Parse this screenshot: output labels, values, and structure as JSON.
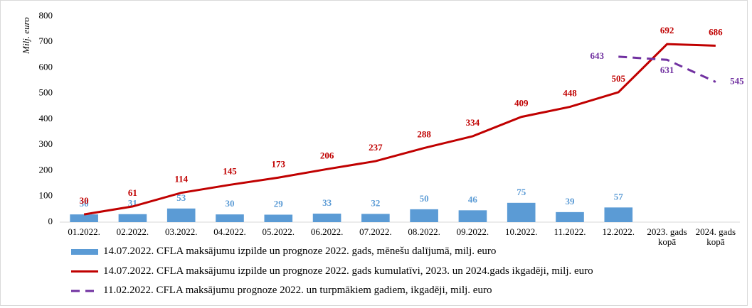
{
  "chart_data": {
    "type": "combo",
    "y_label": "Milj. euro",
    "categories": [
      "01.2022.",
      "02.2022.",
      "03.2022.",
      "04.2022.",
      "05.2022.",
      "06.2022.",
      "07.2022.",
      "08.2022.",
      "09.2022.",
      "10.2022.",
      "11.2022.",
      "12.2022.",
      "2023. gads kopā",
      "2024. gads kopā"
    ],
    "series": [
      {
        "name": "14.07.2022. CFLA maksājumu izpilde un prognoze 2022. gads, mēnešu dalījumā, milj. euro",
        "type": "bar",
        "color": "#5b9bd5",
        "values": [
          30,
          31,
          53,
          30,
          29,
          33,
          32,
          50,
          46,
          75,
          39,
          57,
          null,
          null
        ]
      },
      {
        "name": "14.07.2022. CFLA maksājumu izpilde un prognoze 2022. gads kumulatīvi, 2023. un 2024.gads ikgadēji, milj. euro",
        "type": "line",
        "color": "#c00000",
        "values": [
          30,
          61,
          114,
          145,
          173,
          206,
          237,
          288,
          334,
          409,
          448,
          505,
          692,
          686
        ]
      },
      {
        "name": "11.02.2022. CFLA maksājumu prognoze 2022. un turpmākiem gadiem, ikgadēji, milj. euro",
        "type": "dashed",
        "color": "#7030a0",
        "values": [
          null,
          null,
          null,
          null,
          null,
          null,
          null,
          null,
          null,
          null,
          null,
          643,
          631,
          545
        ]
      }
    ],
    "ylim": [
      0,
      800
    ],
    "yticks": [
      0,
      100,
      200,
      300,
      400,
      500,
      600,
      700,
      800
    ],
    "grid": false
  }
}
